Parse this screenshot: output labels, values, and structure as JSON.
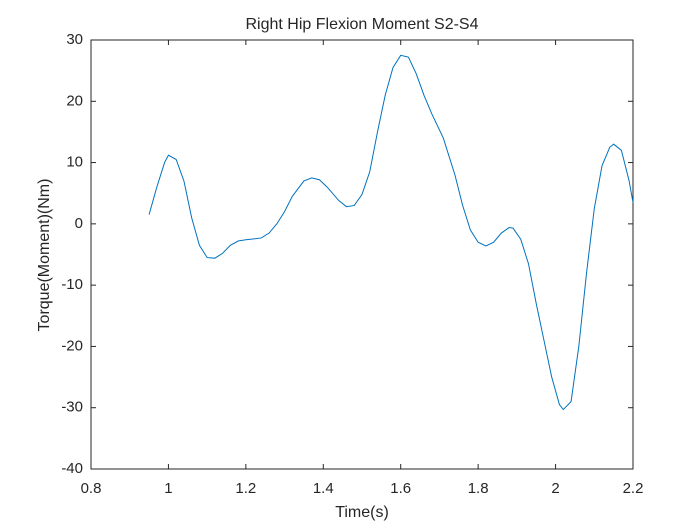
{
  "chart_data": {
    "type": "line",
    "title": "Right Hip Flexion Moment S2-S4",
    "x_label": "Time(s)",
    "y_label": "Torque(Moment)(Nm)",
    "x": [
      0.95,
      0.97,
      0.99,
      1.0,
      1.02,
      1.04,
      1.06,
      1.08,
      1.1,
      1.12,
      1.14,
      1.16,
      1.18,
      1.2,
      1.24,
      1.26,
      1.28,
      1.3,
      1.32,
      1.35,
      1.37,
      1.39,
      1.41,
      1.44,
      1.46,
      1.48,
      1.5,
      1.52,
      1.54,
      1.56,
      1.58,
      1.6,
      1.62,
      1.64,
      1.66,
      1.68,
      1.71,
      1.74,
      1.76,
      1.78,
      1.8,
      1.82,
      1.84,
      1.86,
      1.88,
      1.89,
      1.91,
      1.93,
      1.95,
      1.97,
      1.99,
      2.01,
      2.02,
      2.04,
      2.06,
      2.08,
      2.1,
      2.12,
      2.14,
      2.15,
      2.17,
      2.19,
      2.2
    ],
    "series": [
      {
        "color": "#0072bd",
        "values": [
          1.5,
          6,
          10,
          11.2,
          10.5,
          7,
          1,
          -3.5,
          -5.5,
          -5.6,
          -4.8,
          -3.5,
          -2.8,
          -2.6,
          -2.3,
          -1.5,
          0,
          2,
          4.5,
          7,
          7.5,
          7.2,
          6,
          3.8,
          2.8,
          3,
          4.8,
          8.5,
          15,
          21,
          25.5,
          27.5,
          27.2,
          24.5,
          21,
          18,
          14,
          8,
          3,
          -1,
          -3,
          -3.6,
          -3,
          -1.5,
          -0.6,
          -0.7,
          -2.5,
          -6.5,
          -13,
          -19,
          -25,
          -29.5,
          -30.3,
          -29,
          -20,
          -8,
          2.5,
          9.5,
          12.5,
          13,
          12,
          7,
          3.5
        ]
      }
    ],
    "xlim": [
      0.8,
      2.2
    ],
    "ylim": [
      -40,
      30
    ],
    "xticks": [
      0.8,
      1,
      1.2,
      1.4,
      1.6,
      1.8,
      2,
      2.2
    ],
    "yticks": [
      -40,
      -30,
      -20,
      -10,
      0,
      10,
      20,
      30
    ]
  }
}
